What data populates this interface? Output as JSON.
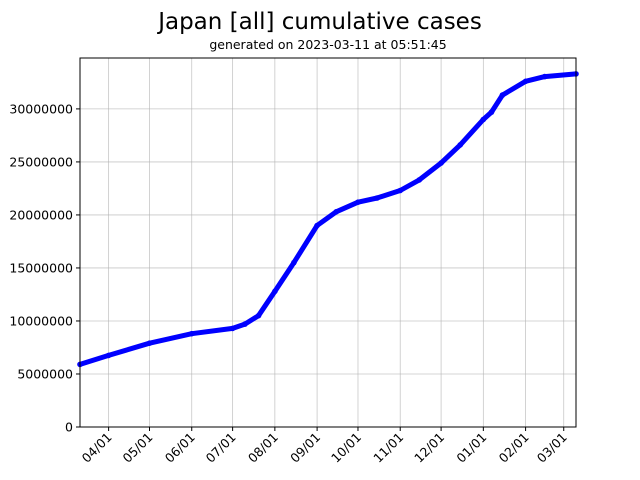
{
  "chart_data": {
    "type": "line",
    "title": "Japan [all] cumulative cases",
    "subtitle": "generated on 2023-03-11 at 05:51:45",
    "xlabel": "",
    "ylabel": "",
    "grid": true,
    "x_range": [
      "2022-03-11",
      "2023-03-10"
    ],
    "ylim": [
      0,
      34800000
    ],
    "y_ticks": [
      0,
      5000000,
      10000000,
      15000000,
      20000000,
      25000000,
      30000000
    ],
    "y_tick_labels": [
      "0",
      "5000000",
      "10000000",
      "15000000",
      "20000000",
      "25000000",
      "30000000"
    ],
    "x_ticks": [
      "2022-04-01",
      "2022-05-01",
      "2022-06-01",
      "2022-07-01",
      "2022-08-01",
      "2022-09-01",
      "2022-10-01",
      "2022-11-01",
      "2022-12-01",
      "2023-01-01",
      "2023-02-01",
      "2023-03-01"
    ],
    "x_tick_labels": [
      "04/01",
      "05/01",
      "06/01",
      "07/01",
      "08/01",
      "09/01",
      "10/01",
      "11/01",
      "12/01",
      "01/01",
      "02/01",
      "03/01"
    ],
    "line_color": "#0000ff",
    "series": [
      {
        "x": [
          "2022-03-11",
          "2022-04-01",
          "2022-05-01",
          "2022-06-01",
          "2022-07-01",
          "2022-07-10",
          "2022-07-20",
          "2022-08-01",
          "2022-08-15",
          "2022-09-01",
          "2022-09-15",
          "2022-10-01",
          "2022-10-15",
          "2022-11-01",
          "2022-11-15",
          "2022-12-01",
          "2022-12-15",
          "2023-01-01",
          "2023-01-07",
          "2023-01-15",
          "2023-02-01",
          "2023-02-15",
          "2023-03-10"
        ],
        "y": [
          5900000,
          6750000,
          7900000,
          8800000,
          9300000,
          9700000,
          10500000,
          12800000,
          15500000,
          19000000,
          20300000,
          21200000,
          21600000,
          22300000,
          23300000,
          24900000,
          26600000,
          29000000,
          29700000,
          31300000,
          32600000,
          33050000,
          33300000
        ]
      }
    ]
  }
}
